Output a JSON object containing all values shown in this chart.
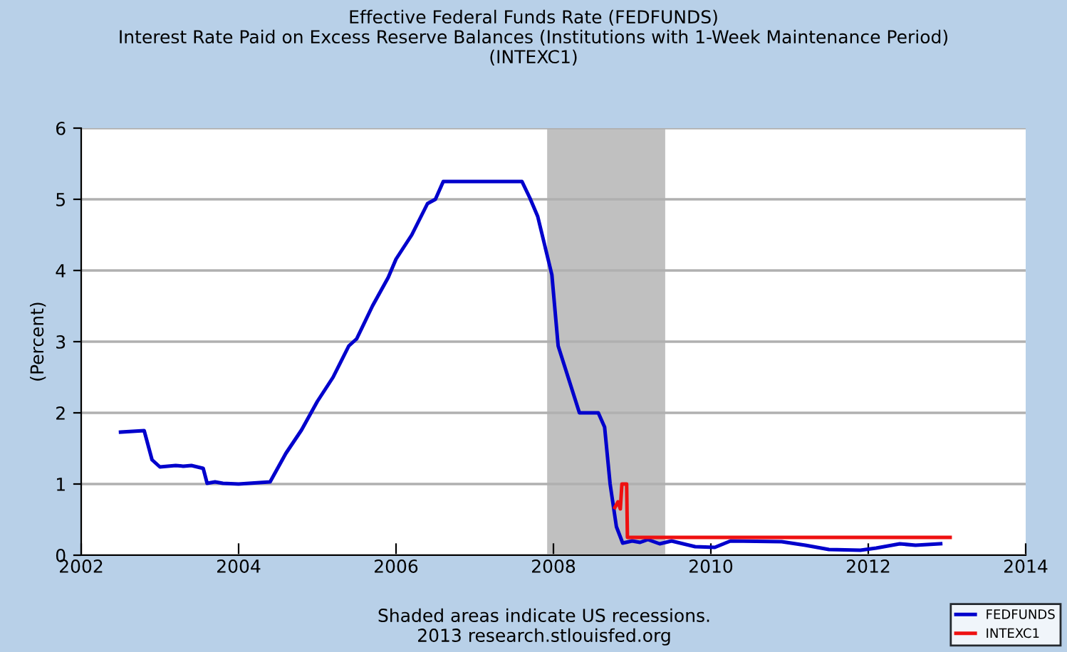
{
  "chart_data": {
    "type": "line",
    "title": "Effective Federal Funds Rate (FEDFUNDS)\nInterest Rate Paid on Excess Reserve Balances (Institutions with 1-Week Maintenance Period)\n(INTEXC1)",
    "ylabel": "(Percent)",
    "annotations": [
      "Shaded areas indicate US recessions.\n2013 research.stlouisfed.org"
    ],
    "xlim": [
      2002,
      2014
    ],
    "xticks": [
      2002,
      2004,
      2006,
      2008,
      2010,
      2012,
      2014
    ],
    "ylim": [
      0,
      6
    ],
    "yticks": [
      0,
      1,
      2,
      3,
      4,
      5,
      6
    ],
    "grid": "y",
    "legend": "bottom right",
    "marker": "none",
    "line_style": "solid",
    "bands": [
      {
        "axis": "x",
        "from": 2007.92,
        "to": 2009.42,
        "color": "#c0c0c0"
      }
    ],
    "series": [
      {
        "name": "FEDFUNDS",
        "color": "#0000cc",
        "x": [
          2002.5,
          2002.8,
          2002.9,
          2003.0,
          2003.2,
          2003.3,
          2003.4,
          2003.55,
          2003.6,
          2003.7,
          2003.8,
          2004.0,
          2004.4,
          2004.6,
          2004.8,
          2005.0,
          2005.2,
          2005.4,
          2005.5,
          2005.7,
          2005.9,
          2006.0,
          2006.2,
          2006.4,
          2006.5,
          2006.6,
          2007.0,
          2007.6,
          2007.7,
          2007.8,
          2007.98,
          2008.06,
          2008.33,
          2008.57,
          2008.65,
          2008.72,
          2008.8,
          2008.88,
          2009.0,
          2009.1,
          2009.2,
          2009.35,
          2009.5,
          2009.8,
          2010.05,
          2010.25,
          2010.9,
          2011.2,
          2011.5,
          2011.9,
          2012.1,
          2012.4,
          2012.6,
          2012.92
        ],
        "values": [
          1.73,
          1.75,
          1.34,
          1.24,
          1.26,
          1.25,
          1.26,
          1.22,
          1.01,
          1.03,
          1.01,
          1.0,
          1.03,
          1.43,
          1.76,
          2.16,
          2.5,
          2.94,
          3.04,
          3.5,
          3.9,
          4.16,
          4.5,
          4.94,
          5.0,
          5.25,
          5.25,
          5.25,
          5.02,
          4.76,
          3.94,
          2.94,
          2.0,
          2.0,
          1.8,
          1.0,
          0.4,
          0.17,
          0.2,
          0.18,
          0.22,
          0.16,
          0.2,
          0.12,
          0.11,
          0.2,
          0.19,
          0.14,
          0.08,
          0.07,
          0.1,
          0.16,
          0.14,
          0.16
        ]
      },
      {
        "name": "INTEXC1",
        "color": "#ee1111",
        "x": [
          2008.78,
          2008.82,
          2008.85,
          2008.87,
          2008.93,
          2008.94,
          2013.04
        ],
        "values": [
          0.67,
          0.75,
          0.65,
          1.0,
          1.0,
          0.25,
          0.25
        ]
      }
    ]
  }
}
